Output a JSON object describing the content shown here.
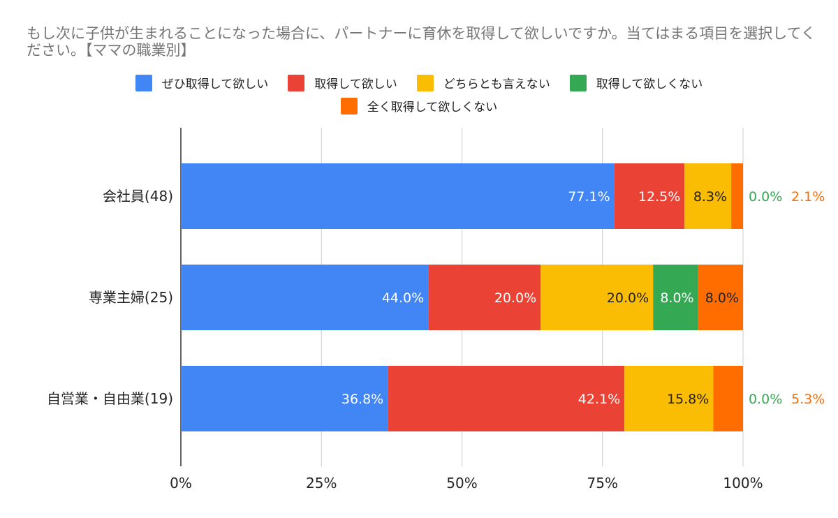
{
  "title": "もし次に子供が生まれることになった場合に、パートナーに育休を取得して欲しいですか。当てはまる項目を選択してください。【ママの職業別】",
  "chart_data": {
    "type": "bar",
    "orientation": "horizontal",
    "stacked": "100%",
    "categories": [
      "会社員(48)",
      "専業主婦(25)",
      "自営業・自由業(19)"
    ],
    "series": [
      {
        "name": "ぜひ取得して欲しい",
        "color": "#4285F4",
        "label_color": "#ffffff",
        "values": [
          77.1,
          44.0,
          36.8
        ],
        "labels": [
          "77.1%",
          "44.0%",
          "36.8%"
        ]
      },
      {
        "name": "取得して欲しい",
        "color": "#EA4335",
        "label_color": "#ffffff",
        "values": [
          12.5,
          20.0,
          42.1
        ],
        "labels": [
          "12.5%",
          "20.0%",
          "42.1%"
        ]
      },
      {
        "name": "どちらとも言えない",
        "color": "#FBBC04",
        "label_color": "#222222",
        "values": [
          8.3,
          20.0,
          15.8
        ],
        "labels": [
          "8.3%",
          "20.0%",
          "15.8%"
        ]
      },
      {
        "name": "取得して欲しくない",
        "color": "#34A853",
        "label_color": "#ffffff",
        "values": [
          0.0,
          8.0,
          0.0
        ],
        "labels": [
          "0.0%",
          "8.0%",
          "0.0%"
        ]
      },
      {
        "name": "全く取得して欲しくない",
        "color": "#FF6D01",
        "label_color": "#222222",
        "values": [
          2.1,
          8.0,
          5.3
        ],
        "labels": [
          "2.1%",
          "8.0%",
          "5.3%"
        ]
      }
    ],
    "x_ticks": [
      "0%",
      "25%",
      "50%",
      "75%",
      "100%"
    ],
    "xlim": [
      0,
      100
    ],
    "grid": true,
    "legend_position": "top"
  }
}
